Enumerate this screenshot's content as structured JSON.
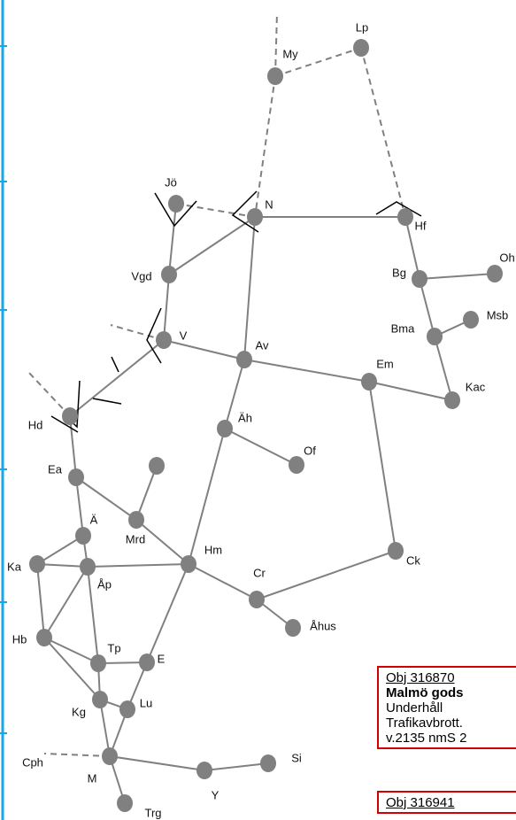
{
  "nodes": [
    {
      "label": "My"
    },
    {
      "label": "Lp"
    },
    {
      "label": "Jö"
    },
    {
      "label": "N"
    },
    {
      "label": "Hf"
    },
    {
      "label": "Vgd"
    },
    {
      "label": "Bg"
    },
    {
      "label": "Oh"
    },
    {
      "label": "V"
    },
    {
      "label": "Av"
    },
    {
      "label": "Bma"
    },
    {
      "label": "Msb"
    },
    {
      "label": "Em"
    },
    {
      "label": "Kac"
    },
    {
      "label": "Hd"
    },
    {
      "label": "Äh"
    },
    {
      "label": "Of"
    },
    {
      "label": "Ea"
    },
    {
      "label": "Mrd"
    },
    {
      "label": "Ä"
    },
    {
      "label": "Ka"
    },
    {
      "label": "Åp"
    },
    {
      "label": "Hm"
    },
    {
      "label": "Ck"
    },
    {
      "label": "Cr"
    },
    {
      "label": "Åhus"
    },
    {
      "label": "Hb"
    },
    {
      "label": "Tp"
    },
    {
      "label": "E"
    },
    {
      "label": "Kg"
    },
    {
      "label": "Lu"
    },
    {
      "label": "M"
    },
    {
      "label": "Y"
    },
    {
      "label": "Si"
    },
    {
      "label": "Trg"
    },
    {
      "label": "Cph"
    }
  ],
  "notices": [
    {
      "lines": [
        "Obj 316870",
        "Malmö gods",
        "Underhåll",
        "Trafikavbrott.",
        "v.2135 nmS 2"
      ]
    },
    {
      "lines": [
        "Obj 316941"
      ]
    }
  ]
}
